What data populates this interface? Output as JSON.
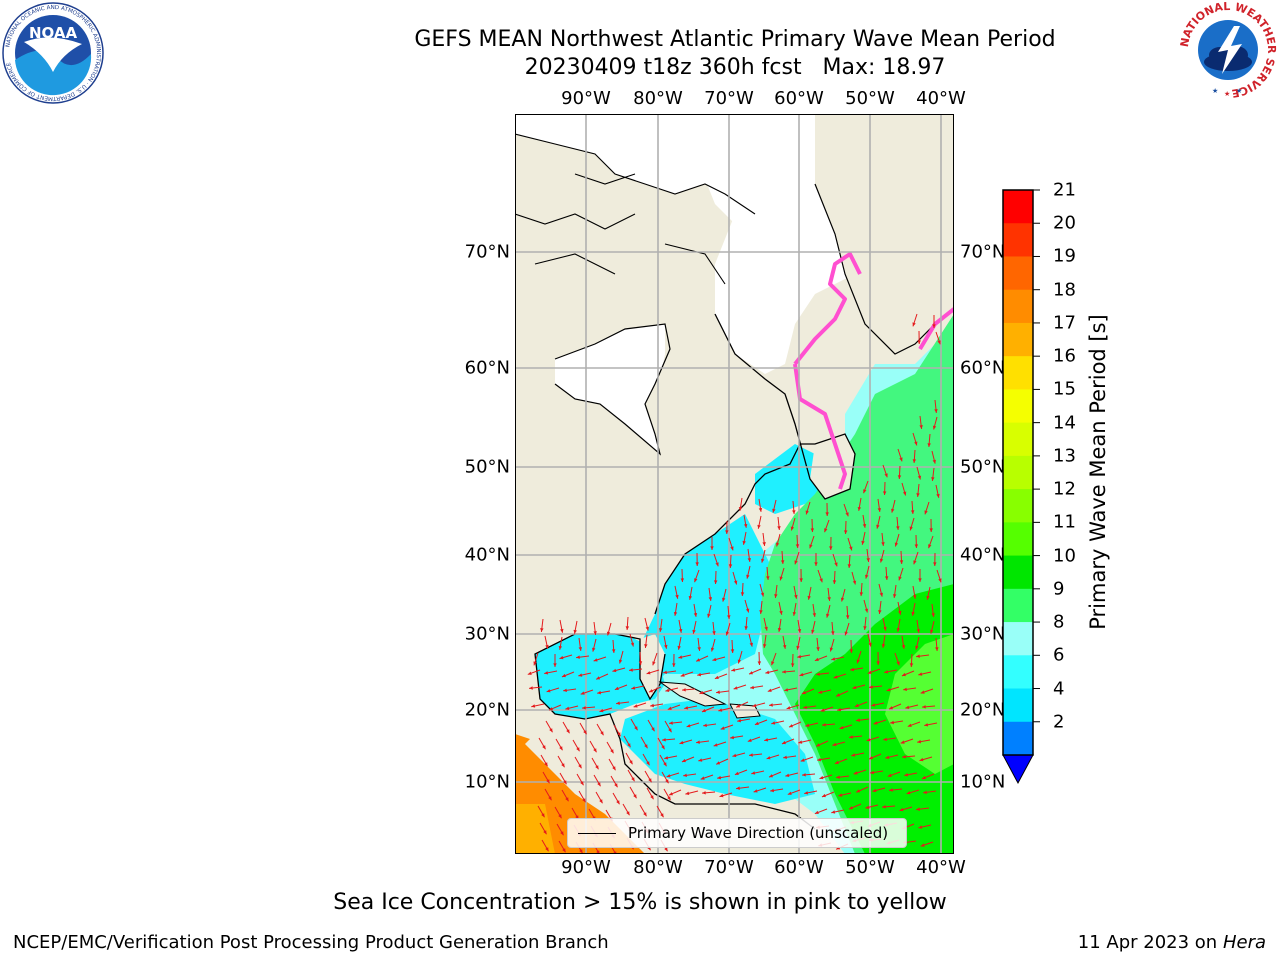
{
  "header": {
    "title_line1": "GEFS MEAN Northwest Atlantic Primary Wave Mean Period",
    "title_line2": "20230409 t18z 360h fcst   Max: 18.97"
  },
  "logos": {
    "noaa_text": "NOAA",
    "noaa_ring": "NATIONAL OCEANIC AND ATMOSPHERIC ADMINISTRATION · U.S. DEPARTMENT OF COMMERCE",
    "nws_ring": "NATIONAL WEATHER SERVICE"
  },
  "map": {
    "lon_ticks": [
      "90°W",
      "80°W",
      "70°W",
      "60°W",
      "50°W",
      "40°W"
    ],
    "lat_ticks": [
      "70°N",
      "60°N",
      "50°N",
      "40°N",
      "30°N",
      "20°N",
      "10°N"
    ],
    "legend_label": "Primary Wave Direction (unscaled)",
    "land_color": "#efecdc",
    "ocean_cyan": "#00eaff",
    "ocean_lightcyan": "#99fff8",
    "ocean_green": "#43f77f",
    "ocean_brightgreen": "#00f000",
    "ocean_orange": "#ff8c00",
    "arrow_color": "#e41a1c"
  },
  "colorbar": {
    "title": "Primary Wave Mean Period [s]",
    "levels": [
      "21",
      "20",
      "19",
      "18",
      "17",
      "16",
      "15",
      "14",
      "13",
      "12",
      "11",
      "10",
      "9",
      "8",
      "6",
      "4",
      "2"
    ],
    "colors": [
      "#ff0000",
      "#ff3300",
      "#ff6600",
      "#ff8c00",
      "#ffb000",
      "#ffe000",
      "#f5ff00",
      "#d8ff00",
      "#b8ff00",
      "#88ff00",
      "#55ff00",
      "#00e600",
      "#33ff66",
      "#99fff8",
      "#33ffff",
      "#00e5ff",
      "#0080ff"
    ],
    "under_color": "#0000ff"
  },
  "footer": {
    "note": "Sea Ice Concentration > 15% is shown in pink to yellow",
    "left": "NCEP/EMC/Verification Post Processing Product Generation Branch",
    "right_date": "11 Apr 2023 on ",
    "right_host": "Hera"
  }
}
